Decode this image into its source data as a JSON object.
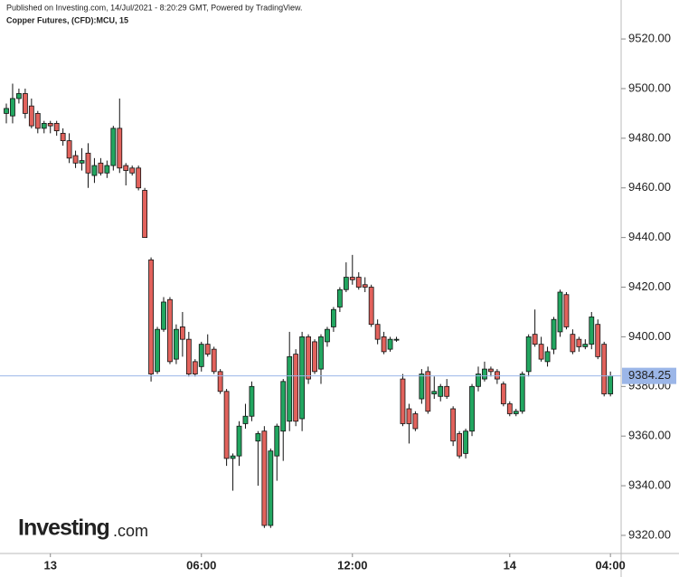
{
  "chart_data": {
    "type": "candlestick",
    "published": "Published on Investing.com, 14/Jul/2021 - 8:20:29 GMT, Powered by TradingView.",
    "title": "Copper Futures, (CFD):MCU, 15",
    "watermark": [
      "Investing",
      ".com"
    ],
    "up_color": "#22a660",
    "down_color": "#e2625c",
    "last_line_color": "#9bb6e8",
    "categories": [
      null,
      null,
      null,
      null,
      null,
      null,
      null,
      "13",
      null,
      null,
      null,
      null,
      null,
      null,
      null,
      null,
      null,
      null,
      null,
      null,
      null,
      null,
      null,
      null,
      null,
      null,
      null,
      null,
      null,
      null,
      null,
      "06:00",
      null,
      null,
      null,
      null,
      null,
      null,
      null,
      null,
      null,
      null,
      null,
      null,
      null,
      null,
      null,
      null,
      null,
      null,
      null,
      null,
      null,
      null,
      null,
      "12:00",
      null,
      null,
      null,
      null,
      null,
      null,
      null,
      null,
      null,
      null,
      null,
      null,
      null,
      null,
      null,
      null,
      null,
      null,
      null,
      null,
      null,
      null,
      null,
      null,
      "14",
      null,
      null,
      null,
      null,
      null,
      null,
      null,
      null,
      null,
      null,
      null,
      null,
      null,
      null,
      null,
      "04:00"
    ],
    "open": [
      9490,
      9489,
      9496,
      9498,
      9493,
      9490,
      9484,
      9486,
      9486,
      9482,
      9479,
      9473,
      9470,
      9474,
      9465,
      9470,
      9466,
      9469,
      9484,
      9469,
      9468,
      9468,
      9459,
      9431,
      9386,
      9403,
      9415,
      9391,
      9404,
      9399,
      9390,
      9388,
      9397,
      9395,
      9386,
      9378,
      9351,
      9352,
      9365,
      9368,
      9358,
      9362,
      9324,
      9352,
      9362,
      9366,
      9393,
      9367,
      9400,
      9398,
      9387,
      9398,
      9404,
      9412,
      9419,
      9424,
      9424,
      9421,
      9420,
      9405,
      9400,
      9395,
      9399,
      9383,
      9371,
      9369,
      9375,
      9386,
      9377,
      9376,
      9380,
      9371,
      9361,
      9353,
      9362,
      9380,
      9383,
      9387,
      9386,
      9381,
      9373,
      9369,
      9370,
      9386,
      9401,
      9397,
      9390,
      9395,
      9402,
      9417,
      9401,
      9399,
      9396,
      9397,
      9405,
      9397,
      9377
    ],
    "high": [
      9494,
      9502,
      9500,
      9500,
      9496,
      9491,
      9487,
      9487,
      9487,
      9484,
      9482,
      9475,
      9476,
      9478,
      9472,
      9472,
      9471,
      9485,
      9496,
      9470,
      9469,
      9469,
      9460,
      9432,
      9404,
      9416,
      9416,
      9405,
      9410,
      9402,
      9391,
      9398,
      9401,
      9396,
      9387,
      9379,
      9353,
      9366,
      9373,
      9382,
      9362,
      9364,
      9355,
      9365,
      9383,
      9402,
      9395,
      9402,
      9401,
      9399,
      9401,
      9404,
      9412,
      9420,
      9430,
      9433,
      9426,
      9424,
      9421,
      9407,
      9402,
      9400,
      9400,
      9385,
      9373,
      9370,
      9387,
      9388,
      9384,
      9381,
      9383,
      9372,
      9362,
      9363,
      9381,
      9388,
      9390,
      9388,
      9387,
      9382,
      9374,
      9371,
      9386,
      9401,
      9411,
      9400,
      9396,
      9408,
      9419,
      9418,
      9403,
      9400,
      9399,
      9410,
      9407,
      9398,
      9386
    ],
    "low": [
      9486,
      9486,
      9494,
      9488,
      9484,
      9482,
      9482,
      9482,
      9481,
      9477,
      9470,
      9468,
      9467,
      9460,
      9462,
      9465,
      9464,
      9467,
      9466,
      9461,
      9465,
      9459,
      9440,
      9382,
      9385,
      9402,
      9389,
      9389,
      9392,
      9384,
      9384,
      9386,
      9392,
      9385,
      9377,
      9348,
      9338,
      9348,
      9363,
      9366,
      9340,
      9323,
      9323,
      9342,
      9350,
      9362,
      9364,
      9362,
      9381,
      9385,
      9381,
      9396,
      9402,
      9410,
      9418,
      9421,
      9419,
      9418,
      9404,
      9397,
      9393,
      9394,
      9398,
      9364,
      9357,
      9362,
      9373,
      9369,
      9375,
      9374,
      9375,
      9356,
      9351,
      9351,
      9360,
      9378,
      9382,
      9384,
      9381,
      9372,
      9368,
      9368,
      9369,
      9384,
      9396,
      9390,
      9388,
      9393,
      9400,
      9403,
      9393,
      9394,
      9395,
      9395,
      9391,
      9376,
      9376
    ],
    "close": [
      9492,
      9496,
      9498,
      9490,
      9485,
      9484,
      9486,
      9485,
      9483,
      9479,
      9472,
      9470,
      9471,
      9466,
      9469,
      9466,
      9469,
      9484,
      9468,
      9467,
      9466,
      9460,
      9440,
      9385,
      9403,
      9414,
      9390,
      9403,
      9399,
      9385,
      9385,
      9397,
      9393,
      9386,
      9378,
      9351,
      9352,
      9364,
      9368,
      9380,
      9361,
      9324,
      9354,
      9364,
      9382,
      9392,
      9366,
      9400,
      9383,
      9386,
      9400,
      9403,
      9411,
      9419,
      9424,
      9423,
      9420,
      9420,
      9405,
      9399,
      9394,
      9399,
      9399,
      9365,
      9365,
      9363,
      9385,
      9370,
      9378,
      9380,
      9376,
      9358,
      9352,
      9362,
      9380,
      9385,
      9387,
      9386,
      9383,
      9373,
      9369,
      9370,
      9385,
      9400,
      9397,
      9391,
      9394,
      9407,
      9418,
      9404,
      9394,
      9396,
      9397,
      9408,
      9392,
      9377,
      9384.25
    ],
    "ylim": [
      9312.7,
      9535.7
    ],
    "yticks": [
      {
        "value": 9320,
        "label": "9320.00"
      },
      {
        "value": 9340,
        "label": "9340.00"
      },
      {
        "value": 9360,
        "label": "9360.00"
      },
      {
        "value": 9380,
        "label": "9380.00"
      },
      {
        "value": 9400,
        "label": "9400.00"
      },
      {
        "value": 9420,
        "label": "9420.00"
      },
      {
        "value": 9440,
        "label": "9440.00"
      },
      {
        "value": 9460,
        "label": "9460.00"
      },
      {
        "value": 9480,
        "label": "9480.00"
      },
      {
        "value": 9500,
        "label": "9500.00"
      },
      {
        "value": 9520,
        "label": "9520.00"
      }
    ]
  }
}
